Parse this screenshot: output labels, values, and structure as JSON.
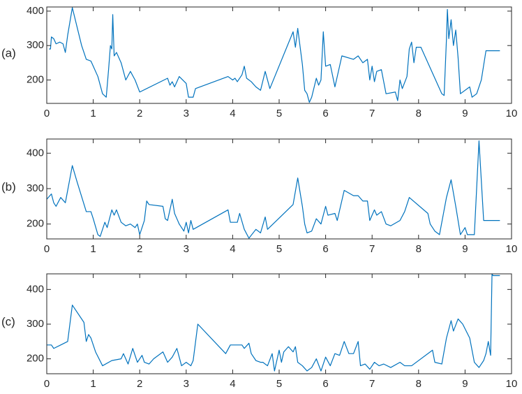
{
  "chart_data": [
    {
      "type": "line",
      "label": "(a)",
      "color": "#0072bd",
      "xlim": [
        0,
        10
      ],
      "xticks": [
        0,
        1,
        2,
        3,
        4,
        5,
        6,
        7,
        8,
        9,
        10
      ],
      "ylim": [
        132,
        412
      ],
      "yticks": [
        200,
        300,
        400
      ],
      "x": [
        0.05,
        0.08,
        0.1,
        0.15,
        0.2,
        0.28,
        0.35,
        0.4,
        0.45,
        0.55,
        0.75,
        0.85,
        0.95,
        1.0,
        1.1,
        1.2,
        1.28,
        1.33,
        1.37,
        1.4,
        1.42,
        1.45,
        1.5,
        1.6,
        1.7,
        1.8,
        1.9,
        2.0,
        2.6,
        2.65,
        2.7,
        2.75,
        2.85,
        3.0,
        3.05,
        3.15,
        3.2,
        3.9,
        4.0,
        4.05,
        4.1,
        4.2,
        4.25,
        4.3,
        4.4,
        4.5,
        4.6,
        4.7,
        4.8,
        5.3,
        5.35,
        5.4,
        5.5,
        5.55,
        5.6,
        5.65,
        5.7,
        5.8,
        5.85,
        5.9,
        5.95,
        6.0,
        6.1,
        6.2,
        6.35,
        6.6,
        6.7,
        6.8,
        6.9,
        6.95,
        7.0,
        7.05,
        7.1,
        7.2,
        7.25,
        7.3,
        7.5,
        7.55,
        7.6,
        7.65,
        7.75,
        7.8,
        7.85,
        7.9,
        7.95,
        8.05,
        8.5,
        8.55,
        8.6,
        8.62,
        8.65,
        8.7,
        8.75,
        8.8,
        8.85,
        8.9,
        9.1,
        9.15,
        9.25,
        9.35,
        9.45,
        9.75
      ],
      "values": [
        290,
        290,
        325,
        320,
        305,
        310,
        305,
        280,
        330,
        410,
        300,
        260,
        255,
        240,
        210,
        160,
        150,
        230,
        300,
        290,
        390,
        270,
        280,
        250,
        200,
        225,
        200,
        165,
        205,
        185,
        195,
        180,
        210,
        190,
        150,
        150,
        175,
        210,
        200,
        205,
        195,
        215,
        240,
        205,
        195,
        180,
        170,
        225,
        175,
        340,
        295,
        350,
        245,
        170,
        160,
        135,
        150,
        205,
        185,
        200,
        340,
        240,
        245,
        180,
        270,
        260,
        270,
        250,
        260,
        200,
        240,
        195,
        225,
        230,
        195,
        160,
        165,
        140,
        200,
        175,
        210,
        290,
        310,
        250,
        295,
        295,
        160,
        155,
        320,
        405,
        320,
        375,
        300,
        345,
        265,
        160,
        180,
        150,
        160,
        200,
        285,
        285
      ]
    },
    {
      "type": "line",
      "label": "(b)",
      "color": "#0072bd",
      "xlim": [
        0,
        10
      ],
      "xticks": [
        0,
        1,
        2,
        3,
        4,
        5,
        6,
        7,
        8,
        9,
        10
      ],
      "ylim": [
        158,
        440
      ],
      "yticks": [
        200,
        300,
        400
      ],
      "x": [
        0.0,
        0.1,
        0.15,
        0.2,
        0.3,
        0.4,
        0.55,
        0.65,
        0.85,
        0.95,
        1.0,
        1.1,
        1.15,
        1.25,
        1.3,
        1.4,
        1.45,
        1.5,
        1.6,
        1.7,
        1.8,
        1.9,
        1.95,
        2.0,
        2.1,
        2.15,
        2.2,
        2.5,
        2.55,
        2.6,
        2.7,
        2.75,
        2.85,
        2.95,
        3.0,
        3.05,
        3.1,
        3.15,
        3.9,
        3.95,
        4.1,
        4.15,
        4.25,
        4.35,
        4.5,
        4.6,
        4.7,
        4.75,
        5.3,
        5.4,
        5.5,
        5.55,
        5.6,
        5.7,
        5.8,
        5.9,
        6.0,
        6.05,
        6.2,
        6.25,
        6.4,
        6.6,
        6.7,
        6.8,
        6.9,
        6.95,
        7.05,
        7.1,
        7.2,
        7.3,
        7.4,
        7.6,
        7.7,
        7.8,
        8.2,
        8.25,
        8.35,
        8.45,
        8.6,
        8.7,
        8.8,
        8.9,
        9.0,
        9.05,
        9.2,
        9.3,
        9.4,
        9.75
      ],
      "values": [
        270,
        285,
        260,
        250,
        275,
        260,
        365,
        320,
        235,
        235,
        215,
        170,
        165,
        205,
        190,
        240,
        225,
        240,
        205,
        195,
        200,
        190,
        200,
        170,
        210,
        265,
        255,
        250,
        215,
        210,
        270,
        230,
        200,
        180,
        205,
        175,
        210,
        185,
        240,
        205,
        205,
        230,
        185,
        160,
        185,
        175,
        220,
        185,
        255,
        330,
        250,
        200,
        175,
        180,
        215,
        200,
        250,
        225,
        230,
        210,
        295,
        280,
        280,
        265,
        265,
        210,
        240,
        225,
        235,
        200,
        195,
        210,
        235,
        275,
        230,
        200,
        180,
        170,
        275,
        325,
        250,
        170,
        190,
        170,
        170,
        435,
        210,
        210
      ]
    },
    {
      "type": "line",
      "label": "(c)",
      "color": "#0072bd",
      "xlim": [
        0,
        10
      ],
      "xticks": [
        0,
        1,
        2,
        3,
        4,
        5,
        6,
        7,
        8,
        9,
        10
      ],
      "ylim": [
        157,
        445
      ],
      "yticks": [
        200,
        300,
        400
      ],
      "x": [
        0.0,
        0.1,
        0.15,
        0.3,
        0.45,
        0.55,
        0.8,
        0.85,
        0.9,
        0.95,
        1.05,
        1.2,
        1.4,
        1.6,
        1.65,
        1.75,
        1.85,
        1.95,
        2.05,
        2.1,
        2.2,
        2.3,
        2.5,
        2.6,
        2.7,
        2.8,
        2.9,
        3.0,
        3.1,
        3.15,
        3.25,
        3.85,
        3.95,
        4.2,
        4.25,
        4.35,
        4.4,
        4.5,
        4.6,
        4.65,
        4.75,
        4.85,
        4.9,
        5.0,
        5.05,
        5.1,
        5.2,
        5.3,
        5.35,
        5.4,
        5.5,
        5.6,
        5.7,
        5.8,
        5.9,
        6.0,
        6.1,
        6.2,
        6.3,
        6.4,
        6.5,
        6.6,
        6.7,
        6.75,
        6.85,
        6.95,
        7.05,
        7.15,
        7.25,
        7.4,
        7.6,
        7.7,
        7.85,
        8.3,
        8.35,
        8.5,
        8.6,
        8.7,
        8.75,
        8.85,
        8.95,
        9.1,
        9.2,
        9.3,
        9.4,
        9.45,
        9.5,
        9.55,
        9.58,
        9.6,
        9.75
      ],
      "values": [
        240,
        240,
        230,
        240,
        250,
        355,
        305,
        250,
        270,
        260,
        220,
        180,
        195,
        200,
        215,
        185,
        230,
        190,
        210,
        190,
        185,
        200,
        220,
        190,
        205,
        230,
        180,
        190,
        180,
        195,
        300,
        215,
        240,
        240,
        230,
        245,
        215,
        195,
        190,
        190,
        180,
        215,
        165,
        225,
        190,
        220,
        235,
        220,
        235,
        190,
        180,
        165,
        175,
        200,
        165,
        205,
        180,
        215,
        210,
        250,
        215,
        215,
        250,
        180,
        185,
        170,
        190,
        180,
        185,
        175,
        190,
        180,
        180,
        225,
        190,
        185,
        260,
        310,
        280,
        315,
        300,
        260,
        190,
        175,
        195,
        215,
        250,
        210,
        445,
        440,
        440
      ]
    }
  ]
}
